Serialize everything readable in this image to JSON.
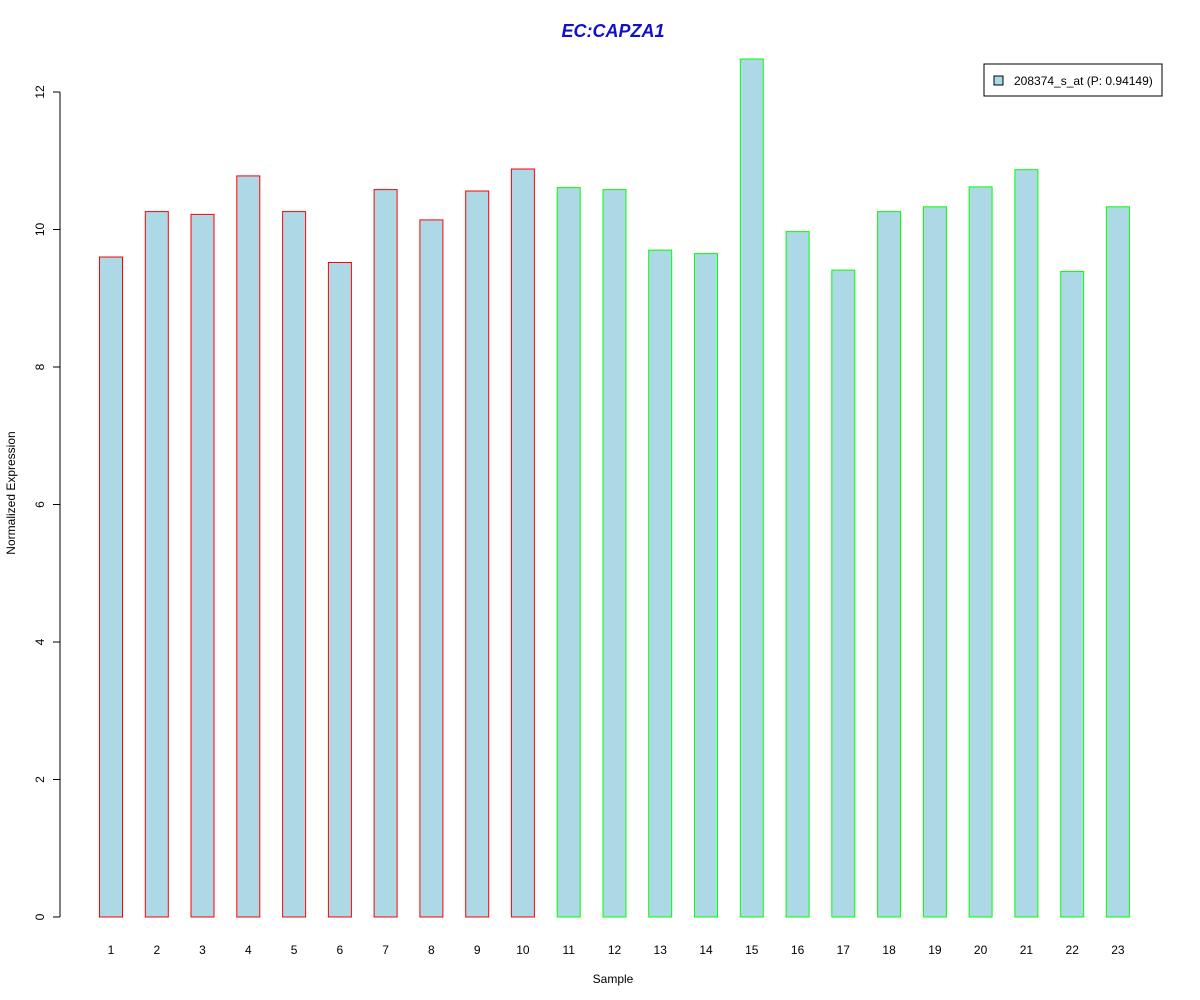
{
  "chart_data": {
    "type": "bar",
    "title": "EC:CAPZA1",
    "xlabel": "Sample",
    "ylabel": "Normalized Expression",
    "ylim": [
      0,
      12.5
    ],
    "yticks": [
      0,
      2,
      4,
      6,
      8,
      10,
      12
    ],
    "grid": false,
    "legend_position": "top-right",
    "categories": [
      "1",
      "2",
      "3",
      "4",
      "5",
      "6",
      "7",
      "8",
      "9",
      "10",
      "11",
      "12",
      "13",
      "14",
      "15",
      "16",
      "17",
      "18",
      "19",
      "20",
      "21",
      "22",
      "23"
    ],
    "series": [
      {
        "name": "208374_s_at (P: 0.94149)",
        "fill_color": "#add8e6",
        "values": [
          9.6,
          10.26,
          10.22,
          10.78,
          10.26,
          9.52,
          10.58,
          10.14,
          10.56,
          10.88,
          10.61,
          10.58,
          9.7,
          9.65,
          12.48,
          9.97,
          9.41,
          10.26,
          10.33,
          10.62,
          10.87,
          9.39,
          10.33
        ]
      }
    ],
    "group_border_colors": [
      "#ff0000",
      "#ff0000",
      "#ff0000",
      "#ff0000",
      "#ff0000",
      "#ff0000",
      "#ff0000",
      "#ff0000",
      "#ff0000",
      "#ff0000",
      "#00ff00",
      "#00ff00",
      "#00ff00",
      "#00ff00",
      "#00ff00",
      "#00ff00",
      "#00ff00",
      "#00ff00",
      "#00ff00",
      "#00ff00",
      "#00ff00",
      "#00ff00",
      "#00ff00"
    ],
    "title_color": "#1010cc"
  }
}
